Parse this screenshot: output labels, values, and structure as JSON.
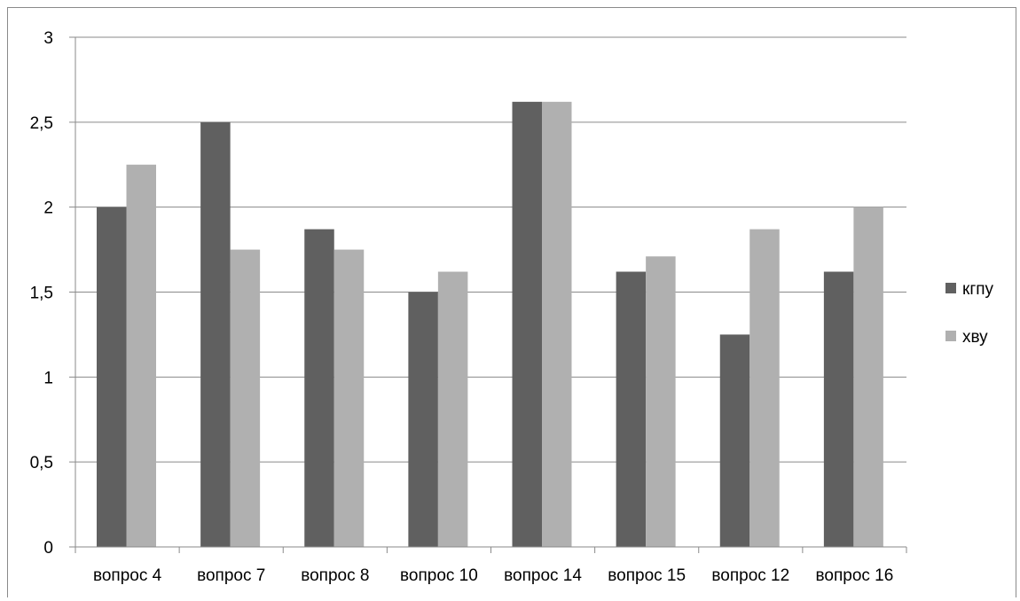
{
  "chart_data": {
    "type": "bar",
    "title": "",
    "xlabel": "",
    "ylabel": "",
    "ylim": [
      0,
      3
    ],
    "yticks": [
      0,
      0.5,
      1,
      1.5,
      2,
      2.5,
      3
    ],
    "ytick_labels": [
      "0",
      "0,5",
      "1",
      "1,5",
      "2",
      "2,5",
      "3"
    ],
    "grid": true,
    "legend_position": "right",
    "categories": [
      "вопрос 4",
      "вопрос 7",
      "вопрос 8",
      "вопрос 10",
      "вопрос 14",
      "вопрос 15",
      "вопрос 12",
      "вопрос 16"
    ],
    "series": [
      {
        "name": "кгпу",
        "color": "#606060",
        "values": [
          2.0,
          2.5,
          1.87,
          1.5,
          2.62,
          1.62,
          1.25,
          1.62
        ]
      },
      {
        "name": "хву",
        "color": "#b0b0b0",
        "values": [
          2.25,
          1.75,
          1.75,
          1.62,
          2.62,
          1.71,
          1.87,
          2.0
        ]
      }
    ]
  }
}
